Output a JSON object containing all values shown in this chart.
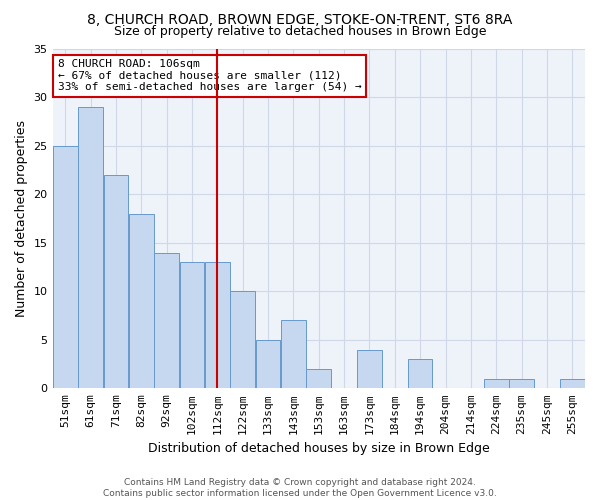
{
  "title_line1": "8, CHURCH ROAD, BROWN EDGE, STOKE-ON-TRENT, ST6 8RA",
  "title_line2": "Size of property relative to detached houses in Brown Edge",
  "xlabel": "Distribution of detached houses by size in Brown Edge",
  "ylabel": "Number of detached properties",
  "categories": [
    "51sqm",
    "61sqm",
    "71sqm",
    "82sqm",
    "92sqm",
    "102sqm",
    "112sqm",
    "122sqm",
    "133sqm",
    "143sqm",
    "153sqm",
    "163sqm",
    "173sqm",
    "184sqm",
    "194sqm",
    "204sqm",
    "214sqm",
    "224sqm",
    "235sqm",
    "245sqm",
    "255sqm"
  ],
  "values": [
    25,
    29,
    22,
    18,
    14,
    13,
    13,
    10,
    5,
    7,
    2,
    0,
    4,
    0,
    3,
    0,
    0,
    1,
    1,
    0,
    1
  ],
  "bar_color": "#c5d8f0",
  "bar_edge_color": "#6699cc",
  "vline_x_index": 6,
  "vline_color": "#cc0000",
  "annotation_text": "8 CHURCH ROAD: 106sqm\n← 67% of detached houses are smaller (112)\n33% of semi-detached houses are larger (54) →",
  "annotation_box_facecolor": "#ffffff",
  "annotation_box_edgecolor": "#cc0000",
  "ylim": [
    0,
    35
  ],
  "yticks": [
    0,
    5,
    10,
    15,
    20,
    25,
    30,
    35
  ],
  "grid_color": "#d0d8e8",
  "plot_bg_color": "#eef2f9",
  "fig_bg_color": "#ffffff",
  "title1_fontsize": 10,
  "title2_fontsize": 9,
  "ylabel_fontsize": 9,
  "xlabel_fontsize": 9,
  "tick_fontsize": 8,
  "annotation_fontsize": 8,
  "footer_text": "Contains HM Land Registry data © Crown copyright and database right 2024.\nContains public sector information licensed under the Open Government Licence v3.0.",
  "footer_fontsize": 6.5
}
